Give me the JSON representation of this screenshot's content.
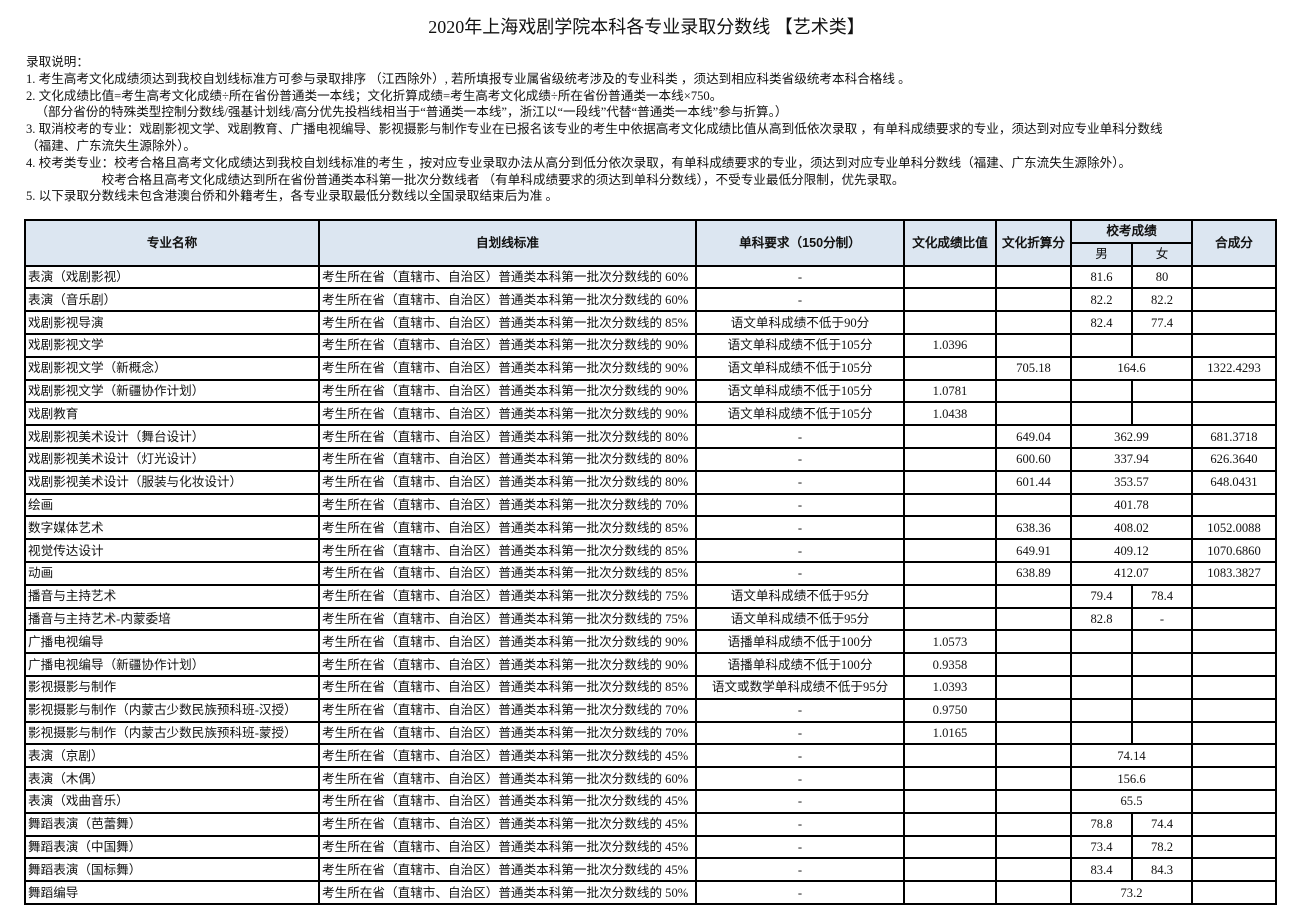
{
  "title": "2020年上海戏剧学院本科各专业录取分数线 【艺术类】",
  "notes": [
    "录取说明：",
    "1. 考生高考文化成绩须达到我校自划线标准方可参与录取排序 （江西除外）, 若所填报专业属省级统考涉及的专业科类 ，须达到相应科类省级统考本科合格线 。",
    "2. 文化成绩比值=考生高考文化成绩÷所在省份普通类一本线；文化折算成绩=考生高考文化成绩÷所在省份普通类一本线×750。",
    "   （部分省份的特殊类型控制分数线/强基计划线/高分优先投档线相当于“普通类一本线”，浙江以“一段线”代替“普通类一本线”参与折算。）",
    "3. 取消校考的专业：戏剧影视文学、戏剧教育、广播电视编导、影视摄影与制作专业在已报名该专业的考生中依据高考文化成绩比值从高到低依次录取 ，有单科成绩要求的专业，须达到对应专业单科分数线",
    "（福建、广东流失生源除外）。",
    "4. 校考类专业：校考合格且高考文化成绩达到我校自划线标准的考生 ，按对应专业录取办法从高分到低分依次录取，有单科成绩要求的专业，须达到对应专业单科分数线（福建、广东流失生源除外）。",
    "                        校考合格且高考文化成绩达到所在省份普通类本科第一批次分数线者 （有单科成绩要求的须达到单科分数线），不受专业最低分限制，优先录取。",
    "5. 以下录取分数线未包含港澳台侨和外籍考生，各专业录取最低分数线以全国录取结束后为准 。"
  ],
  "table": {
    "headers": {
      "name": "专业名称",
      "standard": "自划线标准",
      "single": "单科要求（150分制）",
      "ratio": "文化成绩比值",
      "converted": "文化折算分",
      "school": "校考成绩",
      "male": "男",
      "female": "女",
      "composite": "合成分"
    },
    "rows": [
      {
        "name": "表演（戏剧影视）",
        "standard": "考生所在省（直辖市、自治区）普通类本科第一批次分数线的 60%",
        "single": "-",
        "ratio": "",
        "converted": "",
        "school": {
          "male": "81.6",
          "female": "80"
        },
        "composite": ""
      },
      {
        "name": "表演（音乐剧）",
        "standard": "考生所在省（直辖市、自治区）普通类本科第一批次分数线的 60%",
        "single": "-",
        "ratio": "",
        "converted": "",
        "school": {
          "male": "82.2",
          "female": "82.2"
        },
        "composite": ""
      },
      {
        "name": "戏剧影视导演",
        "standard": "考生所在省（直辖市、自治区）普通类本科第一批次分数线的 85%",
        "single": "语文单科成绩不低于90分",
        "ratio": "",
        "converted": "",
        "school": {
          "male": "82.4",
          "female": "77.4"
        },
        "composite": ""
      },
      {
        "name": "戏剧影视文学",
        "standard": "考生所在省（直辖市、自治区）普通类本科第一批次分数线的 90%",
        "single": "语文单科成绩不低于105分",
        "ratio": "1.0396",
        "converted": "",
        "school": {
          "male": "",
          "female": ""
        },
        "composite": ""
      },
      {
        "name": "戏剧影视文学（新概念）",
        "standard": "考生所在省（直辖市、自治区）普通类本科第一批次分数线的 90%",
        "single": "语文单科成绩不低于105分",
        "ratio": "",
        "converted": "705.18",
        "school": "164.6",
        "composite": "1322.4293"
      },
      {
        "name": "戏剧影视文学（新疆协作计划）",
        "standard": "考生所在省（直辖市、自治区）普通类本科第一批次分数线的 90%",
        "single": "语文单科成绩不低于105分",
        "ratio": "1.0781",
        "converted": "",
        "school": {
          "male": "",
          "female": ""
        },
        "composite": ""
      },
      {
        "name": "戏剧教育",
        "standard": "考生所在省（直辖市、自治区）普通类本科第一批次分数线的 90%",
        "single": "语文单科成绩不低于105分",
        "ratio": "1.0438",
        "converted": "",
        "school": {
          "male": "",
          "female": ""
        },
        "composite": ""
      },
      {
        "name": "戏剧影视美术设计（舞台设计）",
        "standard": "考生所在省（直辖市、自治区）普通类本科第一批次分数线的 80%",
        "single": "-",
        "ratio": "",
        "converted": "649.04",
        "school": "362.99",
        "composite": "681.3718"
      },
      {
        "name": "戏剧影视美术设计（灯光设计）",
        "standard": "考生所在省（直辖市、自治区）普通类本科第一批次分数线的 80%",
        "single": "-",
        "ratio": "",
        "converted": "600.60",
        "school": "337.94",
        "composite": "626.3640"
      },
      {
        "name": "戏剧影视美术设计（服装与化妆设计）",
        "standard": "考生所在省（直辖市、自治区）普通类本科第一批次分数线的 80%",
        "single": "-",
        "ratio": "",
        "converted": "601.44",
        "school": "353.57",
        "composite": "648.0431"
      },
      {
        "name": "绘画",
        "standard": "考生所在省（直辖市、自治区）普通类本科第一批次分数线的 70%",
        "single": "-",
        "ratio": "",
        "converted": "",
        "school": "401.78",
        "composite": ""
      },
      {
        "name": "数字媒体艺术",
        "standard": "考生所在省（直辖市、自治区）普通类本科第一批次分数线的 85%",
        "single": "-",
        "ratio": "",
        "converted": "638.36",
        "school": "408.02",
        "composite": "1052.0088"
      },
      {
        "name": "视觉传达设计",
        "standard": "考生所在省（直辖市、自治区）普通类本科第一批次分数线的 85%",
        "single": "-",
        "ratio": "",
        "converted": "649.91",
        "school": "409.12",
        "composite": "1070.6860"
      },
      {
        "name": "动画",
        "standard": "考生所在省（直辖市、自治区）普通类本科第一批次分数线的 85%",
        "single": "-",
        "ratio": "",
        "converted": "638.89",
        "school": "412.07",
        "composite": "1083.3827"
      },
      {
        "name": "播音与主持艺术",
        "standard": "考生所在省（直辖市、自治区）普通类本科第一批次分数线的 75%",
        "single": "语文单科成绩不低于95分",
        "ratio": "",
        "converted": "",
        "school": {
          "male": "79.4",
          "female": "78.4"
        },
        "composite": ""
      },
      {
        "name": "播音与主持艺术-内蒙委培",
        "standard": "考生所在省（直辖市、自治区）普通类本科第一批次分数线的 75%",
        "single": "语文单科成绩不低于95分",
        "ratio": "",
        "converted": "",
        "school": {
          "male": "82.8",
          "female": "-"
        },
        "composite": ""
      },
      {
        "name": "广播电视编导",
        "standard": "考生所在省（直辖市、自治区）普通类本科第一批次分数线的 90%",
        "single": "语播单科成绩不低于100分",
        "ratio": "1.0573",
        "converted": "",
        "school": {
          "male": "",
          "female": ""
        },
        "composite": ""
      },
      {
        "name": "广播电视编导（新疆协作计划）",
        "standard": "考生所在省（直辖市、自治区）普通类本科第一批次分数线的 90%",
        "single": "语播单科成绩不低于100分",
        "ratio": "0.9358",
        "converted": "",
        "school": {
          "male": "",
          "female": ""
        },
        "composite": ""
      },
      {
        "name": "影视摄影与制作",
        "standard": "考生所在省（直辖市、自治区）普通类本科第一批次分数线的 85%",
        "single": "语文或数学单科成绩不低于95分",
        "ratio": "1.0393",
        "converted": "",
        "school": {
          "male": "",
          "female": ""
        },
        "composite": ""
      },
      {
        "name": "影视摄影与制作（内蒙古少数民族预科班-汉授）",
        "standard": "考生所在省（直辖市、自治区）普通类本科第一批次分数线的 70%",
        "single": "-",
        "ratio": "0.9750",
        "converted": "",
        "school": {
          "male": "",
          "female": ""
        },
        "composite": ""
      },
      {
        "name": "影视摄影与制作（内蒙古少数民族预科班-蒙授）",
        "standard": "考生所在省（直辖市、自治区）普通类本科第一批次分数线的 70%",
        "single": "-",
        "ratio": "1.0165",
        "converted": "",
        "school": {
          "male": "",
          "female": ""
        },
        "composite": ""
      },
      {
        "name": "表演（京剧）",
        "standard": "考生所在省（直辖市、自治区）普通类本科第一批次分数线的 45%",
        "single": "-",
        "ratio": "",
        "converted": "",
        "school": "74.14",
        "composite": ""
      },
      {
        "name": "表演（木偶）",
        "standard": "考生所在省（直辖市、自治区）普通类本科第一批次分数线的 60%",
        "single": "-",
        "ratio": "",
        "converted": "",
        "school": "156.6",
        "composite": ""
      },
      {
        "name": "表演（戏曲音乐）",
        "standard": "考生所在省（直辖市、自治区）普通类本科第一批次分数线的 45%",
        "single": "-",
        "ratio": "",
        "converted": "",
        "school": "65.5",
        "composite": ""
      },
      {
        "name": "舞蹈表演（芭蕾舞）",
        "standard": "考生所在省（直辖市、自治区）普通类本科第一批次分数线的 45%",
        "single": "-",
        "ratio": "",
        "converted": "",
        "school": {
          "male": "78.8",
          "female": "74.4"
        },
        "composite": ""
      },
      {
        "name": "舞蹈表演（中国舞）",
        "standard": "考生所在省（直辖市、自治区）普通类本科第一批次分数线的 45%",
        "single": "-",
        "ratio": "",
        "converted": "",
        "school": {
          "male": "73.4",
          "female": "78.2"
        },
        "composite": ""
      },
      {
        "name": "舞蹈表演（国标舞）",
        "standard": "考生所在省（直辖市、自治区）普通类本科第一批次分数线的 45%",
        "single": "-",
        "ratio": "",
        "converted": "",
        "school": {
          "male": "83.4",
          "female": "84.3"
        },
        "composite": ""
      },
      {
        "name": "舞蹈编导",
        "standard": "考生所在省（直辖市、自治区）普通类本科第一批次分数线的 50%",
        "single": "-",
        "ratio": "",
        "converted": "",
        "school": "73.2",
        "composite": ""
      }
    ]
  },
  "colors": {
    "header_bg": "#dce6f1",
    "border": "#000000"
  }
}
